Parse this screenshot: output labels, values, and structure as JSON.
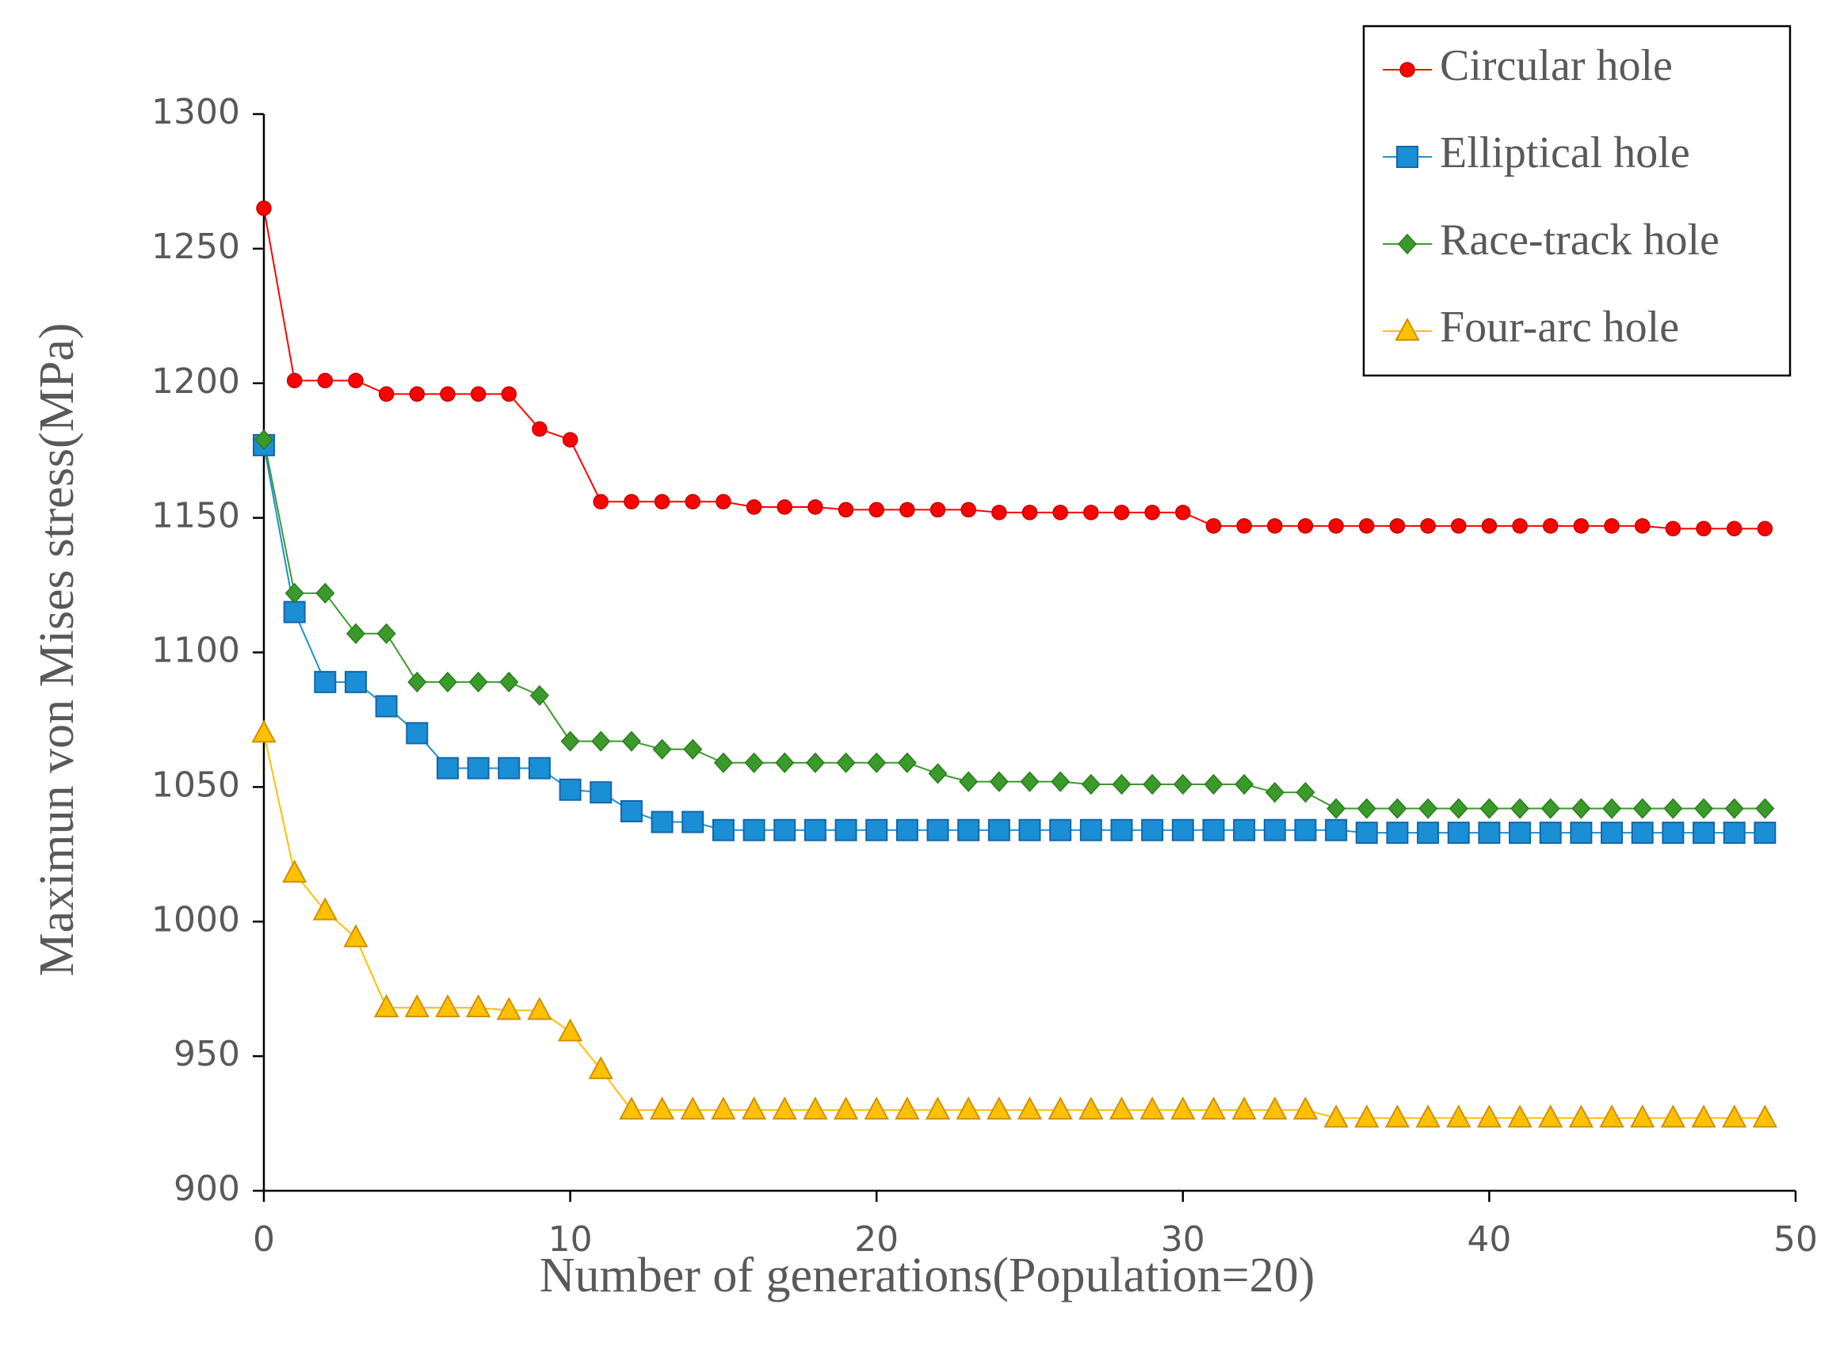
{
  "chart_data": {
    "type": "line",
    "x_label": "Number of generations(Population=20)",
    "y_label": "Maximun von Mises stress(MPa)",
    "x": [
      0,
      1,
      2,
      3,
      4,
      5,
      6,
      7,
      8,
      9,
      10,
      11,
      12,
      13,
      14,
      15,
      16,
      17,
      18,
      19,
      20,
      21,
      22,
      23,
      24,
      25,
      26,
      27,
      28,
      29,
      30,
      31,
      32,
      33,
      34,
      35,
      36,
      37,
      38,
      39,
      40,
      41,
      42,
      43,
      44,
      45,
      46,
      47,
      48,
      49
    ],
    "series": [
      {
        "name": "Circular hole",
        "color": "#ff0000",
        "marker": "circle",
        "values": [
          1265,
          1201,
          1201,
          1201,
          1196,
          1196,
          1196,
          1196,
          1196,
          1183,
          1179,
          1156,
          1156,
          1156,
          1156,
          1156,
          1154,
          1154,
          1154,
          1153,
          1153,
          1153,
          1153,
          1153,
          1152,
          1152,
          1152,
          1152,
          1152,
          1152,
          1152,
          1147,
          1147,
          1147,
          1147,
          1147,
          1147,
          1147,
          1147,
          1147,
          1147,
          1147,
          1147,
          1147,
          1147,
          1147,
          1146,
          1146,
          1146,
          1146
        ]
      },
      {
        "name": "Elliptical hole",
        "color": "#1b8fd6",
        "marker": "square",
        "values": [
          1177,
          1115,
          1089,
          1089,
          1080,
          1070,
          1057,
          1057,
          1057,
          1057,
          1049,
          1048,
          1041,
          1037,
          1037,
          1034,
          1034,
          1034,
          1034,
          1034,
          1034,
          1034,
          1034,
          1034,
          1034,
          1034,
          1034,
          1034,
          1034,
          1034,
          1034,
          1034,
          1034,
          1034,
          1034,
          1034,
          1033,
          1033,
          1033,
          1033,
          1033,
          1033,
          1033,
          1033,
          1033,
          1033,
          1033,
          1033,
          1033,
          1033
        ]
      },
      {
        "name": "Race-track hole",
        "color": "#3a9a2a",
        "marker": "diamond",
        "values": [
          1179,
          1122,
          1122,
          1107,
          1107,
          1089,
          1089,
          1089,
          1089,
          1084,
          1067,
          1067,
          1067,
          1064,
          1064,
          1059,
          1059,
          1059,
          1059,
          1059,
          1059,
          1059,
          1055,
          1052,
          1052,
          1052,
          1052,
          1051,
          1051,
          1051,
          1051,
          1051,
          1051,
          1048,
          1048,
          1042,
          1042,
          1042,
          1042,
          1042,
          1042,
          1042,
          1042,
          1042,
          1042,
          1042,
          1042,
          1042,
          1042,
          1042
        ]
      },
      {
        "name": "Four-arc hole",
        "color": "#ffc000",
        "marker": "triangle",
        "values": [
          1070,
          1018,
          1004,
          994,
          968,
          968,
          968,
          968,
          967,
          967,
          959,
          945,
          930,
          930,
          930,
          930,
          930,
          930,
          930,
          930,
          930,
          930,
          930,
          930,
          930,
          930,
          930,
          930,
          930,
          930,
          930,
          930,
          930,
          930,
          930,
          927,
          927,
          927,
          927,
          927,
          927,
          927,
          927,
          927,
          927,
          927,
          927,
          927,
          927,
          927
        ]
      }
    ],
    "xlim": [
      0,
      50
    ],
    "xticks": [
      0,
      10,
      20,
      30,
      40,
      50
    ],
    "ylim": [
      900,
      1300
    ],
    "yticks": [
      900,
      950,
      1000,
      1050,
      1100,
      1150,
      1200,
      1250,
      1300
    ],
    "grid": false,
    "legend_position": "top-right"
  }
}
